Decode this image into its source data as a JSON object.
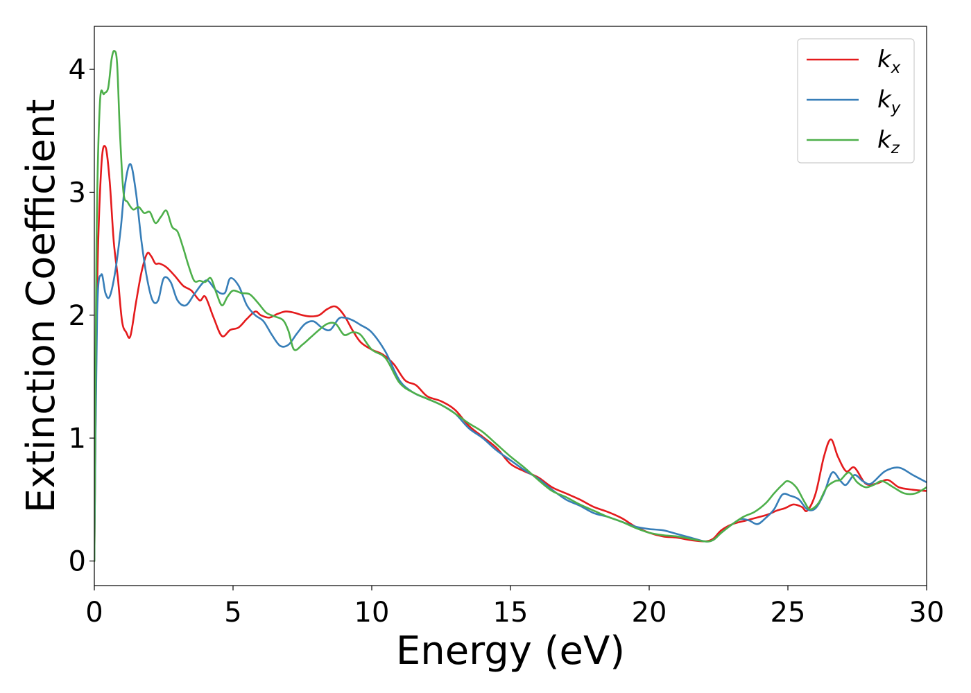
{
  "chart_data": {
    "type": "line",
    "xlabel": "Energy (eV)",
    "ylabel": "Extinction Coefficient",
    "xlim": [
      0,
      30
    ],
    "ylim": [
      -0.2,
      4.35
    ],
    "xticks": [
      0,
      5,
      10,
      15,
      20,
      25,
      30
    ],
    "xtick_labels": [
      "0",
      "5",
      "10",
      "15",
      "20",
      "25",
      "30"
    ],
    "yticks": [
      0,
      1,
      2,
      3,
      4
    ],
    "ytick_labels": [
      "0",
      "1",
      "2",
      "3",
      "4"
    ],
    "grid": false,
    "legend_position": "top-right",
    "series": [
      {
        "name": "k",
        "subscript": "x",
        "color": "#e41a1c",
        "x": [
          0,
          0.1,
          0.25,
          0.4,
          0.55,
          0.7,
          0.85,
          1.0,
          1.15,
          1.3,
          1.5,
          1.7,
          1.9,
          2.05,
          2.2,
          2.35,
          2.6,
          2.9,
          3.2,
          3.5,
          3.8,
          4.0,
          4.3,
          4.6,
          4.9,
          5.2,
          5.5,
          5.8,
          6.0,
          6.3,
          6.6,
          6.9,
          7.2,
          7.5,
          7.8,
          8.1,
          8.4,
          8.7,
          9.0,
          9.3,
          9.6,
          10.0,
          10.4,
          10.8,
          11.2,
          11.6,
          12.0,
          12.5,
          13.0,
          13.5,
          14.0,
          14.5,
          15.0,
          15.5,
          16.0,
          16.5,
          17.0,
          17.5,
          18.0,
          18.5,
          19.0,
          19.5,
          20.0,
          20.5,
          21.0,
          21.5,
          22.0,
          22.3,
          22.6,
          23.0,
          23.5,
          24.0,
          24.3,
          24.6,
          24.9,
          25.2,
          25.5,
          25.7,
          26.0,
          26.3,
          26.55,
          26.8,
          27.1,
          27.4,
          27.8,
          28.2,
          28.6,
          29.0,
          29.5,
          30.0
        ],
        "y": [
          0.0,
          2.2,
          3.2,
          3.37,
          3.1,
          2.6,
          2.3,
          1.95,
          1.86,
          1.83,
          2.1,
          2.35,
          2.5,
          2.48,
          2.42,
          2.42,
          2.39,
          2.32,
          2.24,
          2.2,
          2.12,
          2.15,
          1.98,
          1.83,
          1.88,
          1.9,
          1.97,
          2.03,
          2.0,
          1.98,
          2.01,
          2.03,
          2.02,
          2.0,
          1.99,
          2.0,
          2.05,
          2.07,
          2.0,
          1.88,
          1.78,
          1.72,
          1.68,
          1.6,
          1.47,
          1.43,
          1.34,
          1.3,
          1.23,
          1.1,
          1.01,
          0.92,
          0.79,
          0.73,
          0.68,
          0.6,
          0.55,
          0.5,
          0.44,
          0.4,
          0.35,
          0.28,
          0.23,
          0.2,
          0.19,
          0.17,
          0.16,
          0.18,
          0.25,
          0.3,
          0.33,
          0.36,
          0.38,
          0.41,
          0.43,
          0.46,
          0.44,
          0.41,
          0.55,
          0.85,
          0.99,
          0.85,
          0.73,
          0.76,
          0.63,
          0.63,
          0.66,
          0.6,
          0.58,
          0.57
        ]
      },
      {
        "name": "k",
        "subscript": "y",
        "color": "#377eb8",
        "x": [
          0,
          0.1,
          0.25,
          0.4,
          0.55,
          0.75,
          0.95,
          1.1,
          1.3,
          1.5,
          1.7,
          1.9,
          2.1,
          2.3,
          2.5,
          2.75,
          3.0,
          3.3,
          3.6,
          3.9,
          4.1,
          4.4,
          4.7,
          4.9,
          5.2,
          5.5,
          5.8,
          6.1,
          6.4,
          6.7,
          7.0,
          7.3,
          7.6,
          7.9,
          8.2,
          8.5,
          8.8,
          9.0,
          9.3,
          9.6,
          10.0,
          10.5,
          11.0,
          11.5,
          12.0,
          12.5,
          13.0,
          13.5,
          14.0,
          14.5,
          15.0,
          15.5,
          16.0,
          16.5,
          17.0,
          17.5,
          18.0,
          18.5,
          19.0,
          19.5,
          20.0,
          20.5,
          21.0,
          21.5,
          22.0,
          22.3,
          22.6,
          23.0,
          23.3,
          23.6,
          23.9,
          24.2,
          24.5,
          24.8,
          25.1,
          25.4,
          25.7,
          26.0,
          26.3,
          26.6,
          26.9,
          27.1,
          27.4,
          27.7,
          28.0,
          28.5,
          29.0,
          29.5,
          30.0
        ],
        "y": [
          0.0,
          2.0,
          2.33,
          2.18,
          2.15,
          2.35,
          2.7,
          3.05,
          3.23,
          3.0,
          2.6,
          2.3,
          2.12,
          2.12,
          2.3,
          2.27,
          2.12,
          2.08,
          2.17,
          2.26,
          2.28,
          2.2,
          2.18,
          2.3,
          2.24,
          2.08,
          2.0,
          1.95,
          1.84,
          1.75,
          1.76,
          1.85,
          1.93,
          1.95,
          1.9,
          1.88,
          1.97,
          1.98,
          1.96,
          1.92,
          1.86,
          1.7,
          1.47,
          1.37,
          1.32,
          1.27,
          1.2,
          1.08,
          1.0,
          0.9,
          0.82,
          0.74,
          0.67,
          0.58,
          0.5,
          0.45,
          0.39,
          0.36,
          0.32,
          0.28,
          0.26,
          0.25,
          0.22,
          0.19,
          0.16,
          0.17,
          0.23,
          0.3,
          0.34,
          0.33,
          0.3,
          0.35,
          0.42,
          0.54,
          0.53,
          0.5,
          0.42,
          0.43,
          0.55,
          0.72,
          0.65,
          0.62,
          0.7,
          0.65,
          0.63,
          0.73,
          0.76,
          0.7,
          0.64
        ]
      },
      {
        "name": "k",
        "subscript": "z",
        "color": "#4daf4a",
        "x": [
          0,
          0.08,
          0.2,
          0.35,
          0.5,
          0.62,
          0.72,
          0.82,
          0.92,
          1.05,
          1.2,
          1.4,
          1.6,
          1.8,
          2.0,
          2.2,
          2.4,
          2.6,
          2.8,
          3.0,
          3.2,
          3.4,
          3.6,
          3.8,
          4.0,
          4.2,
          4.4,
          4.6,
          4.8,
          5.0,
          5.3,
          5.6,
          5.9,
          6.2,
          6.5,
          6.8,
          7.0,
          7.2,
          7.5,
          7.8,
          8.1,
          8.4,
          8.7,
          9.0,
          9.3,
          9.6,
          10.0,
          10.5,
          11.0,
          11.5,
          12.0,
          12.5,
          13.0,
          13.5,
          14.0,
          14.5,
          15.0,
          15.5,
          16.0,
          16.5,
          17.0,
          17.5,
          18.0,
          18.5,
          19.0,
          19.5,
          20.0,
          20.5,
          21.0,
          21.5,
          22.0,
          22.3,
          22.6,
          23.0,
          23.4,
          23.8,
          24.2,
          24.5,
          24.8,
          25.0,
          25.3,
          25.6,
          25.8,
          26.1,
          26.4,
          26.7,
          26.9,
          27.2,
          27.5,
          27.8,
          28.1,
          28.4,
          28.8,
          29.2,
          29.6,
          30.0
        ],
        "y": [
          0.0,
          2.6,
          3.72,
          3.8,
          3.85,
          4.08,
          4.15,
          4.05,
          3.5,
          3.0,
          2.92,
          2.86,
          2.88,
          2.83,
          2.84,
          2.75,
          2.8,
          2.85,
          2.72,
          2.68,
          2.55,
          2.4,
          2.28,
          2.28,
          2.27,
          2.3,
          2.18,
          2.08,
          2.15,
          2.2,
          2.18,
          2.17,
          2.1,
          2.02,
          1.99,
          1.96,
          1.87,
          1.72,
          1.76,
          1.82,
          1.88,
          1.93,
          1.93,
          1.84,
          1.86,
          1.84,
          1.72,
          1.65,
          1.45,
          1.37,
          1.32,
          1.27,
          1.2,
          1.12,
          1.05,
          0.95,
          0.85,
          0.76,
          0.66,
          0.57,
          0.52,
          0.46,
          0.41,
          0.36,
          0.32,
          0.27,
          0.23,
          0.21,
          0.2,
          0.18,
          0.16,
          0.17,
          0.23,
          0.3,
          0.36,
          0.4,
          0.47,
          0.55,
          0.62,
          0.65,
          0.6,
          0.48,
          0.42,
          0.47,
          0.6,
          0.65,
          0.66,
          0.72,
          0.64,
          0.6,
          0.62,
          0.65,
          0.6,
          0.55,
          0.55,
          0.6
        ]
      }
    ]
  }
}
